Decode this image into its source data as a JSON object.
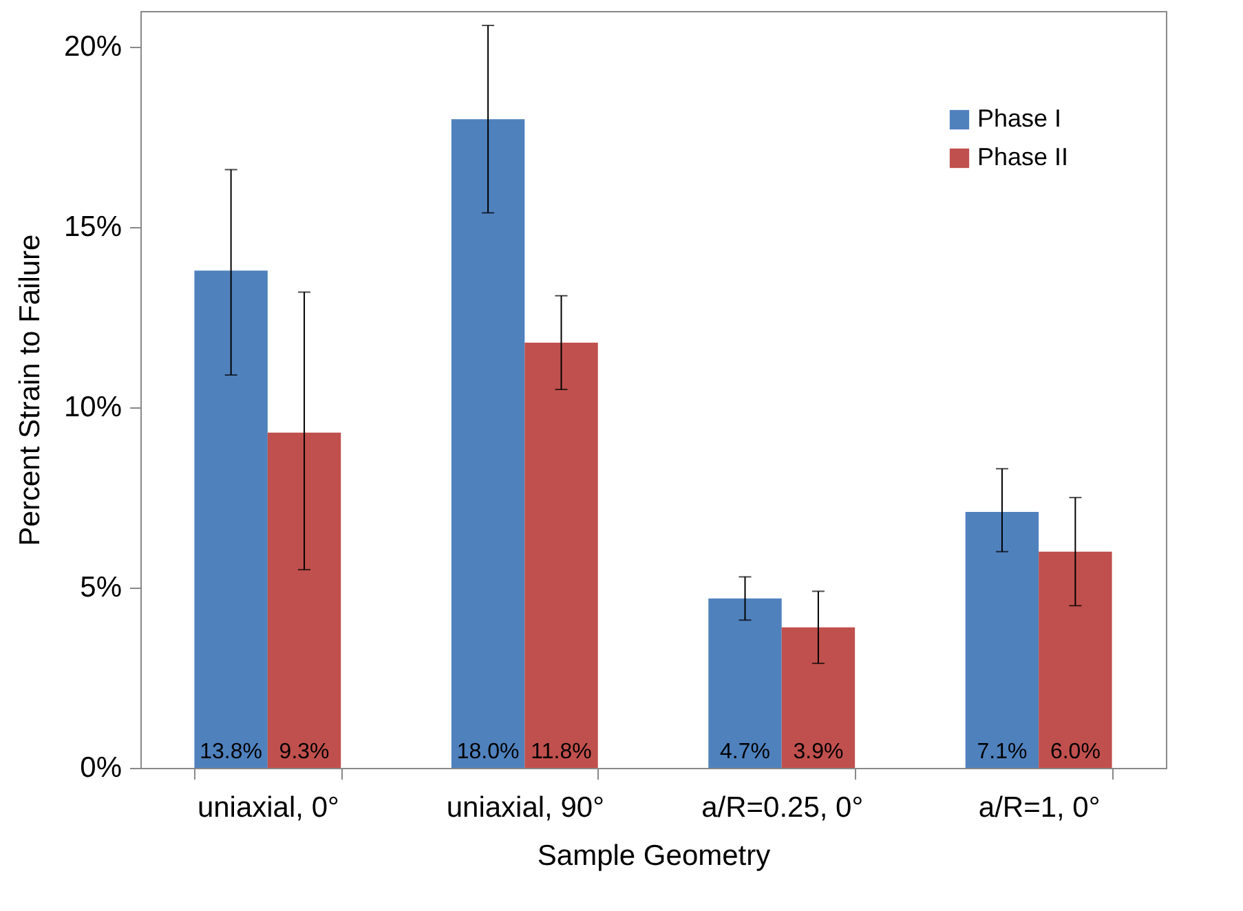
{
  "chart_data": {
    "type": "bar",
    "xlabel": "Sample Geometry",
    "ylabel": "Percent Strain to Failure",
    "categories": [
      "uniaxial, 0°",
      "uniaxial, 90°",
      "a/R=0.25, 0°",
      "a/R=1, 0°"
    ],
    "series": [
      {
        "name": "Phase I",
        "color": "#4f81bd",
        "values": [
          13.8,
          18.0,
          4.7,
          7.1
        ],
        "value_labels": [
          "13.8%",
          "18.0%",
          "4.7%",
          "7.1%"
        ],
        "errors": [
          [
            10.9,
            16.6
          ],
          [
            15.4,
            20.6
          ],
          [
            4.1,
            5.3
          ],
          [
            6.0,
            8.3
          ]
        ]
      },
      {
        "name": "Phase II",
        "color": "#c0504d",
        "values": [
          9.3,
          11.8,
          3.9,
          6.0
        ],
        "value_labels": [
          "9.3%",
          "11.8%",
          "3.9%",
          "6.0%"
        ],
        "errors": [
          [
            5.5,
            13.2
          ],
          [
            10.5,
            13.1
          ],
          [
            2.9,
            4.9
          ],
          [
            4.5,
            7.5
          ]
        ]
      }
    ],
    "ylim": [
      0,
      21
    ],
    "yticks": [
      {
        "value": 0,
        "label": "0%"
      },
      {
        "value": 5,
        "label": "5%"
      },
      {
        "value": 10,
        "label": "10%"
      },
      {
        "value": 15,
        "label": "15%"
      },
      {
        "value": 20,
        "label": "20%"
      }
    ],
    "grid": false,
    "legend": "top right"
  }
}
